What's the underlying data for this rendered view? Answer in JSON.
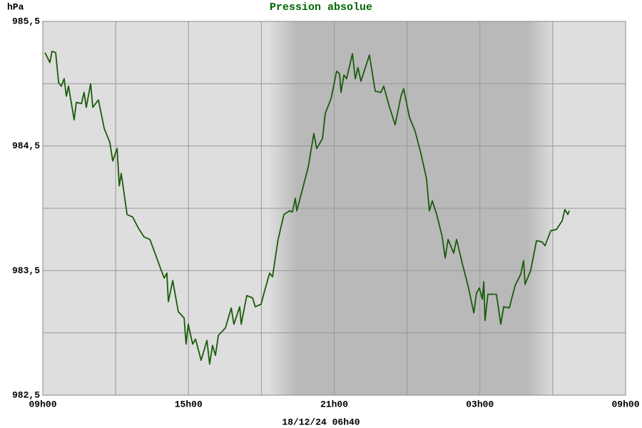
{
  "chart_data": {
    "type": "line",
    "title": "Pression absolue",
    "y_label": "hPa",
    "x_label": "18/12/24 06h40",
    "xlim": [
      9,
      33
    ],
    "xticks": [
      {
        "value": 9,
        "label": "09h00"
      },
      {
        "value": 15,
        "label": "15h00"
      },
      {
        "value": 21,
        "label": "21h00"
      },
      {
        "value": 27,
        "label": "03h00"
      },
      {
        "value": 33,
        "label": "09h00"
      }
    ],
    "xgrid_minor": [
      12,
      18,
      24,
      30
    ],
    "ylim": [
      982.5,
      985.5
    ],
    "yticks": [
      {
        "value": 982.5,
        "label": "982,5"
      },
      {
        "value": 983.5,
        "label": "983,5"
      },
      {
        "value": 984.5,
        "label": "984,5"
      },
      {
        "value": 985.5,
        "label": "985,5"
      }
    ],
    "ygrid_minor": [
      983,
      984,
      985
    ],
    "grid": true,
    "shaded_range": [
      18.3,
      30.1
    ],
    "series": [
      {
        "color": "#1a5c0a",
        "x": [
          9.09,
          9.29,
          9.38,
          9.53,
          9.65,
          9.76,
          9.88,
          9.97,
          10.06,
          10.29,
          10.38,
          10.59,
          10.7,
          10.79,
          10.97,
          11.06,
          11.29,
          11.53,
          11.76,
          11.88,
          12.06,
          12.15,
          12.23,
          12.47,
          12.7,
          12.94,
          13.17,
          13.41,
          13.64,
          13.88,
          14.0,
          14.11,
          14.17,
          14.35,
          14.58,
          14.82,
          14.9,
          14.99,
          15.17,
          15.29,
          15.52,
          15.76,
          15.87,
          15.99,
          16.11,
          16.23,
          16.52,
          16.76,
          16.87,
          17.11,
          17.17,
          17.4,
          17.64,
          17.75,
          17.99,
          18.11,
          18.34,
          18.46,
          18.69,
          18.93,
          19.16,
          19.28,
          19.4,
          19.46,
          19.69,
          19.93,
          20.16,
          20.28,
          20.52,
          20.63,
          20.87,
          21.1,
          21.22,
          21.28,
          21.4,
          21.51,
          21.75,
          21.87,
          21.98,
          22.1,
          22.45,
          22.69,
          22.92,
          23.04,
          23.28,
          23.51,
          23.75,
          23.86,
          24.1,
          24.33,
          24.57,
          24.8,
          24.92,
          25.04,
          25.22,
          25.45,
          25.57,
          25.69,
          25.92,
          26.04,
          26.27,
          26.51,
          26.75,
          26.86,
          26.98,
          27.1,
          27.16,
          27.21,
          27.33,
          27.68,
          27.86,
          27.98,
          28.21,
          28.45,
          28.68,
          28.8,
          28.86,
          29.09,
          29.33,
          29.56,
          29.68,
          29.92,
          30.15,
          30.39,
          30.5,
          30.62,
          30.68
        ],
        "values": [
          985.25,
          985.17,
          985.26,
          985.25,
          985.01,
          984.98,
          985.04,
          984.9,
          984.98,
          984.71,
          984.85,
          984.84,
          984.93,
          984.81,
          985.0,
          984.81,
          984.87,
          984.64,
          984.53,
          984.38,
          984.48,
          984.18,
          984.28,
          983.95,
          983.93,
          983.84,
          983.77,
          983.75,
          983.63,
          983.5,
          983.44,
          983.48,
          983.25,
          983.42,
          983.17,
          983.12,
          982.91,
          983.07,
          982.91,
          982.95,
          982.78,
          982.94,
          982.75,
          982.9,
          982.82,
          982.98,
          983.04,
          983.2,
          983.07,
          983.21,
          983.07,
          983.3,
          983.28,
          983.21,
          983.23,
          983.32,
          983.48,
          983.45,
          983.75,
          983.95,
          983.98,
          983.97,
          984.08,
          983.98,
          984.15,
          984.33,
          984.6,
          984.48,
          984.56,
          984.76,
          984.88,
          985.1,
          985.08,
          984.93,
          985.07,
          985.04,
          985.24,
          985.04,
          985.13,
          985.02,
          985.23,
          984.94,
          984.93,
          984.98,
          984.81,
          984.67,
          984.9,
          984.96,
          984.73,
          984.62,
          984.44,
          984.24,
          983.98,
          984.06,
          983.95,
          983.77,
          983.6,
          983.75,
          983.64,
          983.75,
          983.56,
          983.38,
          983.16,
          983.32,
          983.36,
          983.27,
          983.41,
          983.1,
          983.31,
          983.31,
          983.07,
          983.21,
          983.2,
          983.38,
          983.47,
          983.58,
          983.39,
          983.5,
          983.74,
          983.73,
          983.7,
          983.82,
          983.83,
          983.9,
          983.99,
          983.95,
          983.98
        ]
      }
    ]
  }
}
